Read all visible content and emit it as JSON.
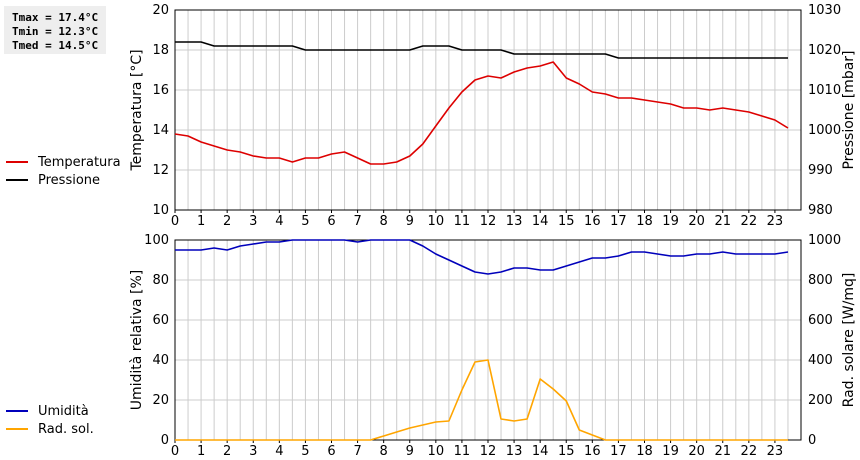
{
  "stats": {
    "tmax": "Tmax = 17.4°C",
    "tmin": "Tmin = 12.3°C",
    "tmed": "Tmed = 14.5°C"
  },
  "colors": {
    "temperature": "#dd0000",
    "pressure": "#000000",
    "humidity": "#0000bb",
    "radiation": "#ffa500",
    "grid": "#cccccc"
  },
  "chart_data": [
    {
      "type": "line",
      "xlabel": "",
      "x_ticks": [
        "0",
        "1",
        "2",
        "3",
        "4",
        "5",
        "6",
        "7",
        "8",
        "9",
        "10",
        "11",
        "12",
        "13",
        "14",
        "15",
        "16",
        "17",
        "18",
        "19",
        "20",
        "21",
        "22",
        "23"
      ],
      "xlim": [
        0,
        24
      ],
      "ylabel": "Temperatura [°C]",
      "ylim": [
        10,
        20
      ],
      "y_ticks": [
        "10",
        "12",
        "14",
        "16",
        "18",
        "20"
      ],
      "y2label": "Pressione [mbar]",
      "y2lim": [
        980,
        1030
      ],
      "y2_ticks": [
        "980",
        "990",
        "1000",
        "1010",
        "1020",
        "1030"
      ],
      "grid": true,
      "legend_position": "left",
      "series": [
        {
          "name": "Temperatura",
          "axis": "left",
          "x": [
            0,
            0.5,
            1,
            1.5,
            2,
            2.5,
            3,
            3.5,
            4,
            4.5,
            5,
            5.5,
            6,
            6.5,
            7,
            7.5,
            8,
            8.5,
            9,
            9.5,
            10,
            10.5,
            11,
            11.5,
            12,
            12.5,
            13,
            13.5,
            14,
            14.5,
            15,
            15.5,
            16,
            16.5,
            17,
            17.5,
            18,
            18.5,
            19,
            19.5,
            20,
            20.5,
            21,
            21.5,
            22,
            22.5,
            23,
            23.5
          ],
          "values": [
            13.8,
            13.7,
            13.4,
            13.2,
            13.0,
            12.9,
            12.7,
            12.6,
            12.6,
            12.4,
            12.6,
            12.6,
            12.8,
            12.9,
            12.6,
            12.3,
            12.3,
            12.4,
            12.7,
            13.3,
            14.2,
            15.1,
            15.9,
            16.5,
            16.7,
            16.6,
            16.9,
            17.1,
            17.2,
            17.4,
            16.6,
            16.3,
            15.9,
            15.8,
            15.6,
            15.6,
            15.5,
            15.4,
            15.3,
            15.1,
            15.1,
            15.0,
            15.1,
            15.0,
            14.9,
            14.7,
            14.5,
            14.1
          ]
        },
        {
          "name": "Pressione",
          "axis": "right",
          "x": [
            0,
            1,
            1.5,
            4.5,
            5,
            9,
            9.5,
            10.5,
            11,
            12.5,
            13,
            16.5,
            17,
            23.5
          ],
          "values": [
            1022,
            1022,
            1021,
            1021,
            1020,
            1020,
            1021,
            1021,
            1020,
            1020,
            1019,
            1019,
            1018,
            1018
          ]
        }
      ]
    },
    {
      "type": "line",
      "xlabel": "",
      "x_ticks": [
        "0",
        "1",
        "2",
        "3",
        "4",
        "5",
        "6",
        "7",
        "8",
        "9",
        "10",
        "11",
        "12",
        "13",
        "14",
        "15",
        "16",
        "17",
        "18",
        "19",
        "20",
        "21",
        "22",
        "23"
      ],
      "xlim": [
        0,
        24
      ],
      "ylabel": "Umidità relativa [%]",
      "ylim": [
        0,
        100
      ],
      "y_ticks": [
        "0",
        "20",
        "40",
        "60",
        "80",
        "100"
      ],
      "y2label": "Rad. solare [W/mq]",
      "y2lim": [
        0,
        1000
      ],
      "y2_ticks": [
        "0",
        "200",
        "400",
        "600",
        "800",
        "1000"
      ],
      "grid": true,
      "legend_position": "left",
      "series": [
        {
          "name": "Umidità",
          "axis": "left",
          "x": [
            0,
            0.5,
            1,
            1.5,
            2,
            2.5,
            3,
            3.5,
            4,
            4.5,
            5,
            5.5,
            6,
            6.5,
            7,
            7.5,
            8,
            8.5,
            9,
            9.5,
            10,
            10.5,
            11,
            11.5,
            12,
            12.5,
            13,
            13.5,
            14,
            14.5,
            15,
            15.5,
            16,
            16.5,
            17,
            17.5,
            18,
            18.5,
            19,
            19.5,
            20,
            20.5,
            21,
            21.5,
            22,
            22.5,
            23,
            23.5
          ],
          "values": [
            95,
            95,
            95,
            96,
            95,
            97,
            98,
            99,
            99,
            100,
            100,
            100,
            100,
            100,
            99,
            100,
            100,
            100,
            100,
            97,
            93,
            90,
            87,
            84,
            83,
            84,
            86,
            86,
            85,
            85,
            87,
            89,
            91,
            91,
            92,
            94,
            94,
            93,
            92,
            92,
            93,
            93,
            94,
            93,
            93,
            93,
            93,
            94
          ]
        },
        {
          "name": "Rad. sol.",
          "axis": "right",
          "x": [
            0,
            1,
            2,
            3,
            4,
            5,
            6,
            7,
            7.5,
            8,
            8.5,
            9,
            9.5,
            10,
            10.5,
            11,
            11.5,
            12,
            12.5,
            13,
            13.5,
            14,
            14.5,
            15,
            15.5,
            16,
            16.5,
            17,
            18,
            19,
            20,
            21,
            22,
            23,
            23.5
          ],
          "values": [
            0,
            0,
            0,
            0,
            0,
            0,
            0,
            0,
            0,
            20,
            40,
            60,
            75,
            90,
            95,
            250,
            390,
            400,
            105,
            95,
            105,
            305,
            255,
            195,
            50,
            25,
            0,
            0,
            0,
            0,
            0,
            0,
            0,
            0,
            0
          ]
        }
      ]
    }
  ]
}
